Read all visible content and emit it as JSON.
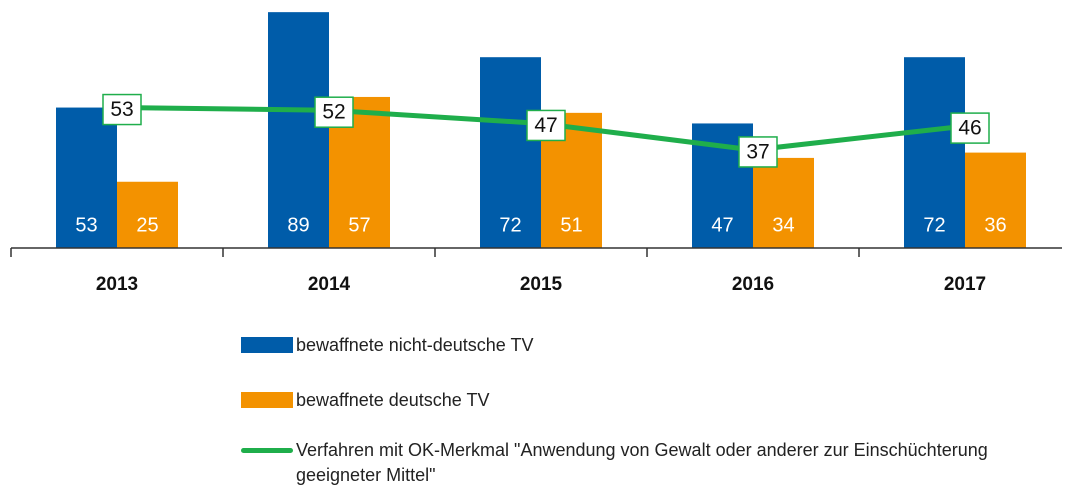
{
  "chart_data": {
    "type": "bar-line",
    "categories": [
      "2013",
      "2014",
      "2015",
      "2016",
      "2017"
    ],
    "series": [
      {
        "name": "bewaffnete nicht-deutsche TV",
        "type": "bar",
        "color": "#005ca9",
        "values": [
          53,
          89,
          72,
          47,
          72
        ]
      },
      {
        "name": "bewaffnete deutsche TV",
        "type": "bar",
        "color": "#f39200",
        "values": [
          25,
          57,
          51,
          34,
          36
        ]
      },
      {
        "name": "Verfahren mit OK-Merkmal \"Anwendung von Gewalt oder anderer zur Einschüchterung geeigneter Mittel\"",
        "type": "line",
        "color": "#1fae4b",
        "values": [
          53,
          52,
          47,
          37,
          46
        ]
      }
    ],
    "ylim": [
      0,
      90
    ],
    "grid": false,
    "legend": "bottom"
  }
}
